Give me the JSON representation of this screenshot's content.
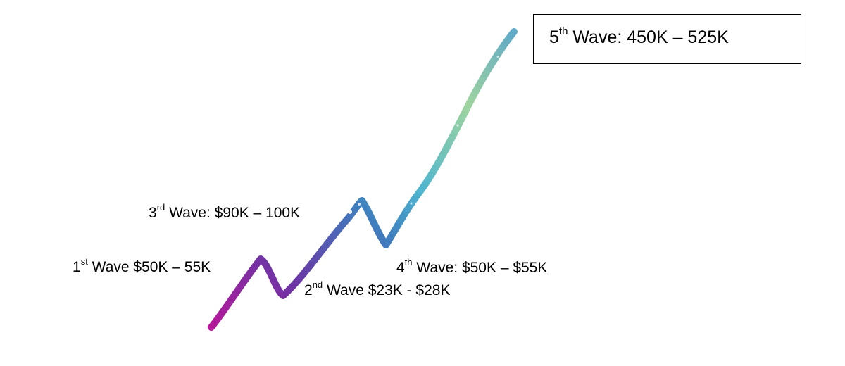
{
  "waves": [
    {
      "number": "1",
      "suffix": "st",
      "text": " Wave $50K – 55K"
    },
    {
      "number": "2",
      "suffix": "nd",
      "text": " Wave $23K - $28K"
    },
    {
      "number": "3",
      "suffix": "rd",
      "text": " Wave: $90K – 100K"
    },
    {
      "number": "4",
      "suffix": "th",
      "text": " Wave: $50K – $55K"
    },
    {
      "number": "5",
      "suffix": "th",
      "text": " Wave: 450K – 525K"
    }
  ],
  "colors": {
    "line_start": "#b5199a",
    "line_purple": "#6a36a6",
    "line_blue": "#3f7fbf",
    "line_cyan": "#4fb6d0",
    "line_green": "#9fd49f",
    "line_end": "#5fa9c8"
  }
}
